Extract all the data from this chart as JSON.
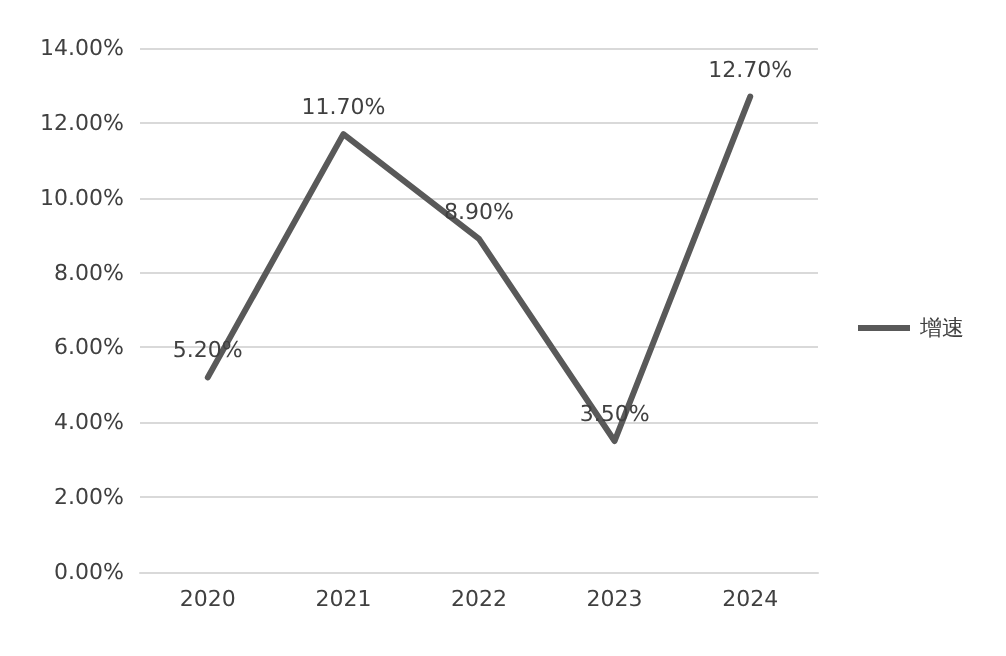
{
  "chart_data": {
    "type": "line",
    "categories": [
      "2020",
      "2021",
      "2022",
      "2023",
      "2024"
    ],
    "series": [
      {
        "name": "增速",
        "color": "#595959",
        "values": [
          5.2,
          11.7,
          8.9,
          3.5,
          12.7
        ],
        "value_labels": [
          "5.20%",
          "11.70%",
          "8.90%",
          "3.50%",
          "12.70%"
        ]
      }
    ],
    "ylim": [
      0,
      14
    ],
    "yticks": [
      {
        "value": 0,
        "label": "0.00%"
      },
      {
        "value": 2,
        "label": "2.00%"
      },
      {
        "value": 4,
        "label": "4.00%"
      },
      {
        "value": 6,
        "label": "6.00%"
      },
      {
        "value": 8,
        "label": "8.00%"
      },
      {
        "value": 10,
        "label": "10.00%"
      },
      {
        "value": 12,
        "label": "12.00%"
      },
      {
        "value": 14,
        "label": "14.00%"
      }
    ],
    "grid": "y",
    "legend": "right",
    "marker": "none",
    "line_style": "solid"
  }
}
